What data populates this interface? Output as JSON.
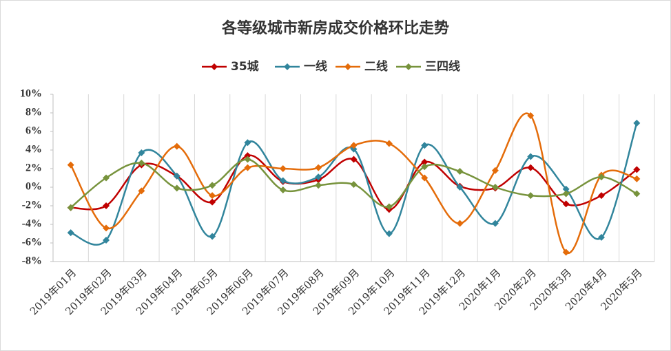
{
  "chart_data": {
    "type": "line",
    "title": "各等级城市新房成交价格环比走势",
    "categories": [
      "2019年01月",
      "2019年02月",
      "2019年03月",
      "2019年04月",
      "2019年05月",
      "2019年06月",
      "2019年07月",
      "2019年08月",
      "2019年09月",
      "2019年10月",
      "2019年11月",
      "2019年12月",
      "2020年1月",
      "2020年2月",
      "2020年3月",
      "2020年4月",
      "2020年5月"
    ],
    "series": [
      {
        "name": "35城",
        "color": "#c00000",
        "values": [
          -2.2,
          -2.0,
          2.4,
          1.2,
          -1.6,
          3.4,
          0.6,
          0.8,
          3.0,
          -2.4,
          2.7,
          0.1,
          -0.1,
          2.1,
          -1.8,
          -0.9,
          1.9
        ]
      },
      {
        "name": "一线",
        "color": "#31859c",
        "values": [
          -4.9,
          -5.7,
          3.7,
          1.2,
          -5.3,
          4.8,
          0.7,
          1.1,
          4.1,
          -5.0,
          4.5,
          0,
          -3.9,
          3.3,
          -0.2,
          -5.4,
          6.9
        ]
      },
      {
        "name": "二线",
        "color": "#e46c0a",
        "values": [
          2.4,
          -4.4,
          -0.4,
          4.4,
          -0.9,
          2.1,
          2.0,
          2.1,
          4.5,
          4.7,
          1.0,
          -3.9,
          1.8,
          7.7,
          -7.0,
          1.3,
          0.9
        ]
      },
      {
        "name": "三四线",
        "color": "#77933c",
        "values": [
          -2.2,
          1.0,
          2.6,
          -0.1,
          0.2,
          3.0,
          -0.3,
          0.2,
          0.3,
          -2.1,
          2.2,
          1.7,
          0,
          -0.9,
          -0.7,
          1.1,
          -0.7
        ]
      }
    ],
    "ylim": [
      -8,
      10
    ],
    "yticks": [
      {
        "value": -8,
        "label": "-8%"
      },
      {
        "value": -6,
        "label": "-6%"
      },
      {
        "value": -4,
        "label": "-4%"
      },
      {
        "value": -2,
        "label": "-2%"
      },
      {
        "value": 0,
        "label": "0%"
      },
      {
        "value": 2,
        "label": "2%"
      },
      {
        "value": 4,
        "label": "4%"
      },
      {
        "value": 6,
        "label": "6%"
      },
      {
        "value": 8,
        "label": "8%"
      },
      {
        "value": 10,
        "label": "10%"
      }
    ],
    "grid": true,
    "legend": "top",
    "smooth": true
  }
}
